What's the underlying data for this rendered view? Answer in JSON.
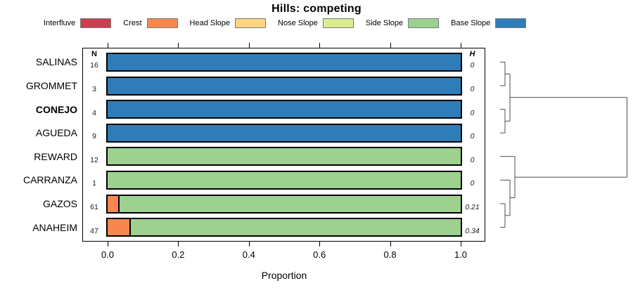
{
  "title": "Hills: competing",
  "legend": [
    {
      "label": "Interfluve",
      "color": "#cb3e4d"
    },
    {
      "label": "Crest",
      "color": "#f8874f"
    },
    {
      "label": "Head Slope",
      "color": "#fbd484"
    },
    {
      "label": "Nose Slope",
      "color": "#d9ec8f"
    },
    {
      "label": "Side Slope",
      "color": "#9ed18f"
    },
    {
      "label": "Base Slope",
      "color": "#2e7db8"
    }
  ],
  "columns": {
    "n_header": "N",
    "h_header": "H"
  },
  "xaxis": {
    "label": "Proportion",
    "ticks": [
      "0.0",
      "0.2",
      "0.4",
      "0.6",
      "0.8",
      "1.0"
    ],
    "tick_values": [
      0,
      0.2,
      0.4,
      0.6,
      0.8,
      1.0
    ],
    "range": [
      0,
      1
    ]
  },
  "chart_data": {
    "type": "bar",
    "orientation": "horizontal",
    "stacked": true,
    "title": "Hills: competing",
    "xlabel": "Proportion",
    "xlim": [
      0,
      1
    ],
    "grid": false,
    "legend_position": "top",
    "categories": [
      "SALINAS",
      "GROMMET",
      "CONEJO",
      "AGUEDA",
      "REWARD",
      "CARRANZA",
      "GAZOS",
      "ANAHEIM"
    ],
    "bold_category": "CONEJO",
    "classes": [
      "Interfluve",
      "Crest",
      "Head Slope",
      "Nose Slope",
      "Side Slope",
      "Base Slope"
    ],
    "rows": [
      {
        "site": "SALINAS",
        "n": 16,
        "h": "0",
        "bold": false,
        "segments": [
          {
            "class": "Base Slope",
            "value": 1.0
          }
        ]
      },
      {
        "site": "GROMMET",
        "n": 3,
        "h": "0",
        "bold": false,
        "segments": [
          {
            "class": "Base Slope",
            "value": 1.0
          }
        ]
      },
      {
        "site": "CONEJO",
        "n": 4,
        "h": "0",
        "bold": true,
        "segments": [
          {
            "class": "Base Slope",
            "value": 1.0
          }
        ]
      },
      {
        "site": "AGUEDA",
        "n": 9,
        "h": "0",
        "bold": false,
        "segments": [
          {
            "class": "Base Slope",
            "value": 1.0
          }
        ]
      },
      {
        "site": "REWARD",
        "n": 12,
        "h": "0",
        "bold": false,
        "segments": [
          {
            "class": "Side Slope",
            "value": 1.0
          }
        ]
      },
      {
        "site": "CARRANZA",
        "n": 1,
        "h": "0",
        "bold": false,
        "segments": [
          {
            "class": "Side Slope",
            "value": 1.0
          }
        ]
      },
      {
        "site": "GAZOS",
        "n": 61,
        "h": "0.21",
        "bold": false,
        "segments": [
          {
            "class": "Crest",
            "value": 0.033
          },
          {
            "class": "Side Slope",
            "value": 0.967
          }
        ]
      },
      {
        "site": "ANAHEIM",
        "n": 47,
        "h": "0.34",
        "bold": false,
        "segments": [
          {
            "class": "Crest",
            "value": 0.065
          },
          {
            "class": "Side Slope",
            "value": 0.935
          }
        ]
      }
    ],
    "dendrogram": {
      "type": "cluster-tree",
      "orientation": "right",
      "tree": [
        [
          [
            "SALINAS",
            "GROMMET"
          ],
          [
            "CONEJO",
            "AGUEDA"
          ]
        ],
        [
          "REWARD",
          [
            "CARRANZA",
            [
              "GAZOS",
              "ANAHEIM"
            ]
          ]
        ]
      ]
    }
  }
}
